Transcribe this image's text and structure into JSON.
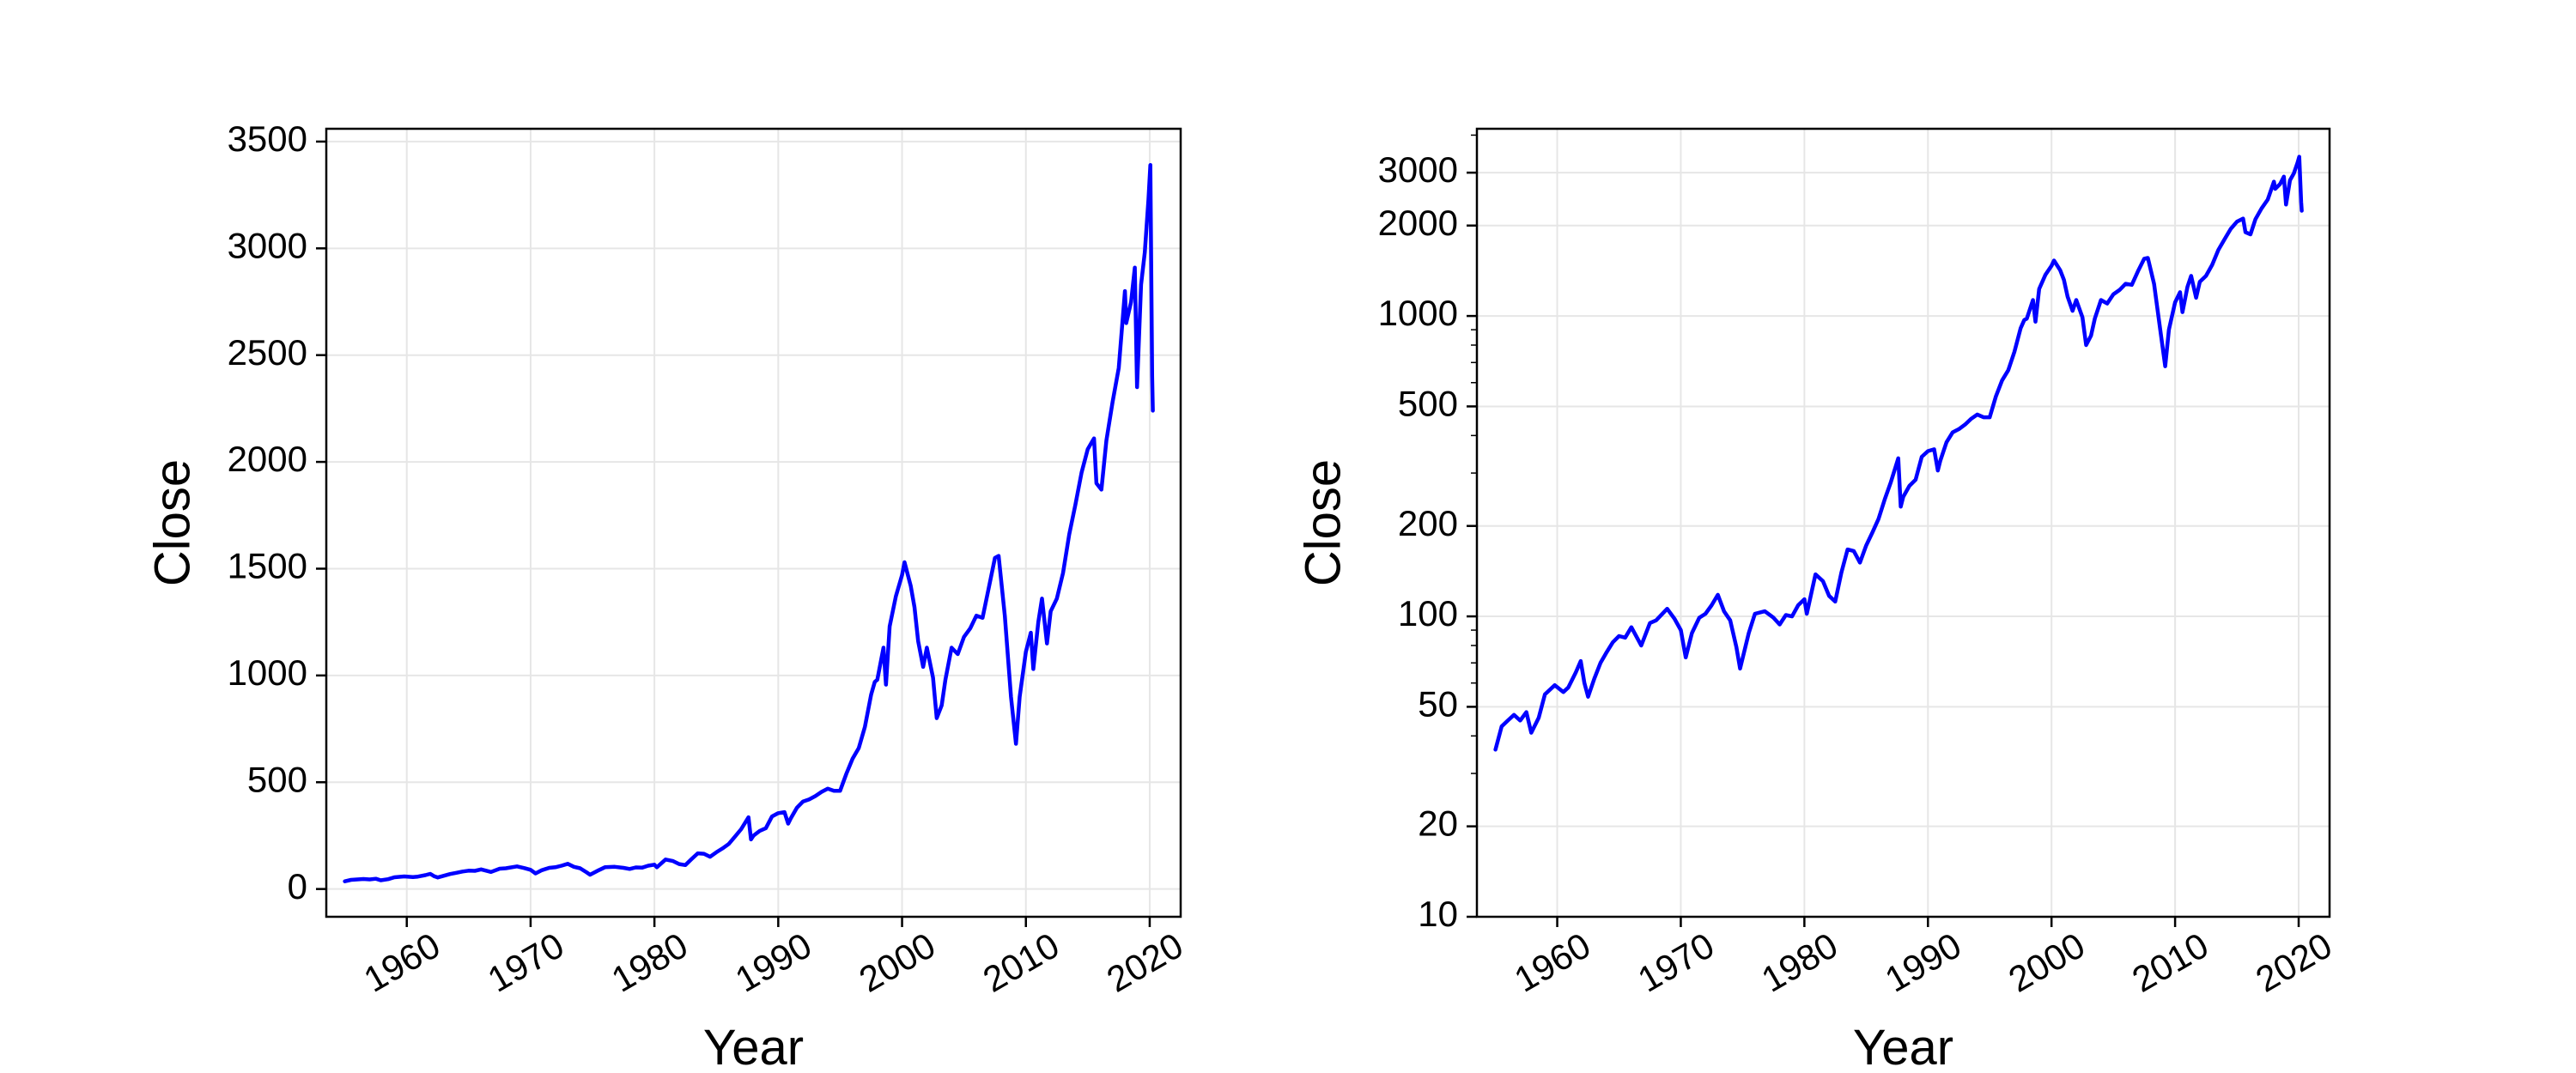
{
  "chart_data": [
    {
      "type": "line",
      "title": "",
      "xlabel": "Year",
      "ylabel": "Close",
      "yscale": "linear",
      "xlim": [
        1953.5,
        2022.5
      ],
      "ylim": [
        -130,
        3560
      ],
      "xticks": [
        1960,
        1970,
        1980,
        1990,
        2000,
        2010,
        2020
      ],
      "xtick_labels": [
        "1960",
        "1970",
        "1980",
        "1990",
        "2000",
        "2010",
        "2020"
      ],
      "yticks": [
        0,
        500,
        1000,
        1500,
        2000,
        2500,
        3000,
        3500
      ],
      "ytick_labels": [
        "0",
        "500",
        "1000",
        "1500",
        "2000",
        "2500",
        "3000",
        "3500"
      ],
      "grid": true,
      "series": [
        {
          "color": "#0000ff",
          "x": [
            1955.0,
            1955.5,
            1956.0,
            1956.5,
            1957.0,
            1957.5,
            1957.9,
            1958.5,
            1959.0,
            1959.8,
            1960.5,
            1960.9,
            1961.5,
            1961.9,
            1962.2,
            1962.5,
            1963.0,
            1963.5,
            1964.0,
            1964.5,
            1965.0,
            1965.5,
            1966.0,
            1966.8,
            1967.5,
            1968.0,
            1968.9,
            1969.5,
            1970.0,
            1970.4,
            1970.9,
            1971.5,
            1972.0,
            1972.5,
            1973.0,
            1973.5,
            1974.0,
            1974.5,
            1974.8,
            1975.5,
            1976.0,
            1976.8,
            1977.5,
            1978.0,
            1978.5,
            1979.0,
            1979.5,
            1980.0,
            1980.2,
            1980.9,
            1981.5,
            1982.0,
            1982.5,
            1983.0,
            1983.5,
            1984.0,
            1984.5,
            1985.0,
            1985.5,
            1986.0,
            1986.5,
            1987.0,
            1987.6,
            1987.8,
            1988.0,
            1988.5,
            1989.0,
            1989.5,
            1990.0,
            1990.5,
            1990.8,
            1991.0,
            1991.5,
            1992.0,
            1992.5,
            1993.0,
            1993.5,
            1994.0,
            1994.5,
            1995.0,
            1995.5,
            1996.0,
            1996.5,
            1997.0,
            1997.5,
            1997.8,
            1998.0,
            1998.5,
            1998.7,
            1999.0,
            1999.5,
            2000.0,
            2000.2,
            2000.7,
            2001.0,
            2001.3,
            2001.7,
            2002.0,
            2002.5,
            2002.8,
            2003.2,
            2003.5,
            2004.0,
            2004.5,
            2005.0,
            2005.5,
            2006.0,
            2006.5,
            2007.0,
            2007.5,
            2007.8,
            2008.3,
            2008.8,
            2009.2,
            2009.5,
            2010.0,
            2010.4,
            2010.6,
            2011.0,
            2011.3,
            2011.7,
            2012.0,
            2012.5,
            2013.0,
            2013.5,
            2014.0,
            2014.5,
            2015.0,
            2015.5,
            2015.7,
            2016.1,
            2016.5,
            2017.0,
            2017.5,
            2018.0,
            2018.1,
            2018.5,
            2018.8,
            2018.98,
            2019.3,
            2019.6,
            2019.9,
            2020.05,
            2020.2,
            2020.25
          ],
          "y": [
            36,
            43,
            45,
            47,
            45,
            48,
            41,
            46,
            55,
            59,
            56,
            58,
            65,
            71,
            60,
            54,
            62,
            70,
            76,
            82,
            86,
            85,
            92,
            80,
            95,
            97,
            106,
            98,
            90,
            73,
            88,
            99,
            102,
            109,
            118,
            104,
            97,
            79,
            67,
            88,
            102,
            104,
            99,
            94,
            101,
            100,
            109,
            114,
            102,
            138,
            131,
            117,
            112,
            140,
            167,
            165,
            151,
            172,
            190,
            211,
            245,
            280,
            336,
            232,
            250,
            272,
            285,
            340,
            355,
            360,
            306,
            330,
            380,
            410,
            420,
            435,
            455,
            470,
            460,
            460,
            540,
            610,
            660,
            760,
            910,
            970,
            980,
            1130,
            957,
            1230,
            1370,
            1470,
            1530,
            1420,
            1320,
            1160,
            1040,
            1130,
            990,
            800,
            860,
            980,
            1130,
            1100,
            1180,
            1220,
            1280,
            1270,
            1410,
            1550,
            1560,
            1280,
            900,
            680,
            900,
            1110,
            1200,
            1030,
            1250,
            1360,
            1150,
            1300,
            1360,
            1480,
            1660,
            1800,
            1950,
            2060,
            2110,
            1900,
            1870,
            2100,
            2280,
            2440,
            2800,
            2650,
            2750,
            2910,
            2350,
            2830,
            2980,
            3230,
            3390,
            2400,
            2240
          ]
        }
      ]
    },
    {
      "type": "line",
      "title": "",
      "xlabel": "Year",
      "ylabel": "Close",
      "yscale": "log",
      "xlim": [
        1953.5,
        2022.5
      ],
      "ylim": [
        10,
        4200
      ],
      "xticks": [
        1960,
        1970,
        1980,
        1990,
        2000,
        2010,
        2020
      ],
      "xtick_labels": [
        "1960",
        "1970",
        "1980",
        "1990",
        "2000",
        "2010",
        "2020"
      ],
      "yticks": [
        10,
        20,
        50,
        100,
        200,
        500,
        1000,
        2000,
        3000
      ],
      "ytick_labels": [
        "10",
        "20",
        "50",
        "100",
        "200",
        "500",
        "1000",
        "2000",
        "3000"
      ],
      "grid": true,
      "series": [
        {
          "color": "#0000ff",
          "x": [
            1955.0,
            1955.5,
            1956.0,
            1956.5,
            1957.0,
            1957.5,
            1957.9,
            1958.5,
            1959.0,
            1959.8,
            1960.5,
            1960.9,
            1961.5,
            1961.9,
            1962.2,
            1962.5,
            1963.0,
            1963.5,
            1964.0,
            1964.5,
            1965.0,
            1965.5,
            1966.0,
            1966.8,
            1967.5,
            1968.0,
            1968.9,
            1969.5,
            1970.0,
            1970.4,
            1970.9,
            1971.5,
            1972.0,
            1972.5,
            1973.0,
            1973.5,
            1974.0,
            1974.5,
            1974.8,
            1975.5,
            1976.0,
            1976.8,
            1977.5,
            1978.0,
            1978.5,
            1979.0,
            1979.5,
            1980.0,
            1980.2,
            1980.9,
            1981.5,
            1982.0,
            1982.5,
            1983.0,
            1983.5,
            1984.0,
            1984.5,
            1985.0,
            1985.5,
            1986.0,
            1986.5,
            1987.0,
            1987.6,
            1987.8,
            1988.0,
            1988.5,
            1989.0,
            1989.5,
            1990.0,
            1990.5,
            1990.8,
            1991.0,
            1991.5,
            1992.0,
            1992.5,
            1993.0,
            1993.5,
            1994.0,
            1994.5,
            1995.0,
            1995.5,
            1996.0,
            1996.5,
            1997.0,
            1997.5,
            1997.8,
            1998.0,
            1998.5,
            1998.7,
            1999.0,
            1999.5,
            2000.0,
            2000.2,
            2000.7,
            2001.0,
            2001.3,
            2001.7,
            2002.0,
            2002.5,
            2002.8,
            2003.2,
            2003.5,
            2004.0,
            2004.5,
            2005.0,
            2005.5,
            2006.0,
            2006.5,
            2007.0,
            2007.5,
            2007.8,
            2008.3,
            2008.8,
            2009.2,
            2009.5,
            2010.0,
            2010.4,
            2010.6,
            2011.0,
            2011.3,
            2011.7,
            2012.0,
            2012.5,
            2013.0,
            2013.5,
            2014.0,
            2014.5,
            2015.0,
            2015.5,
            2015.7,
            2016.1,
            2016.5,
            2017.0,
            2017.5,
            2018.0,
            2018.1,
            2018.5,
            2018.8,
            2018.98,
            2019.3,
            2019.6,
            2019.9,
            2020.05,
            2020.2,
            2020.25
          ],
          "y": [
            36,
            43,
            45,
            47,
            45,
            48,
            41,
            46,
            55,
            59,
            56,
            58,
            65,
            71,
            60,
            54,
            62,
            70,
            76,
            82,
            86,
            85,
            92,
            80,
            95,
            97,
            106,
            98,
            90,
            73,
            88,
            99,
            102,
            109,
            118,
            104,
            97,
            79,
            67,
            88,
            102,
            104,
            99,
            94,
            101,
            100,
            109,
            114,
            102,
            138,
            131,
            117,
            112,
            140,
            167,
            165,
            151,
            172,
            190,
            211,
            245,
            280,
            336,
            232,
            250,
            272,
            285,
            340,
            355,
            360,
            306,
            330,
            380,
            410,
            420,
            435,
            455,
            470,
            460,
            460,
            540,
            610,
            660,
            760,
            910,
            970,
            980,
            1130,
            957,
            1230,
            1370,
            1470,
            1530,
            1420,
            1320,
            1160,
            1040,
            1130,
            990,
            800,
            860,
            980,
            1130,
            1100,
            1180,
            1220,
            1280,
            1270,
            1410,
            1550,
            1560,
            1280,
            900,
            680,
            900,
            1110,
            1200,
            1030,
            1250,
            1360,
            1150,
            1300,
            1360,
            1480,
            1660,
            1800,
            1950,
            2060,
            2110,
            1900,
            1870,
            2100,
            2280,
            2440,
            2800,
            2650,
            2750,
            2910,
            2350,
            2830,
            2980,
            3230,
            3390,
            2400,
            2240
          ]
        }
      ]
    }
  ]
}
